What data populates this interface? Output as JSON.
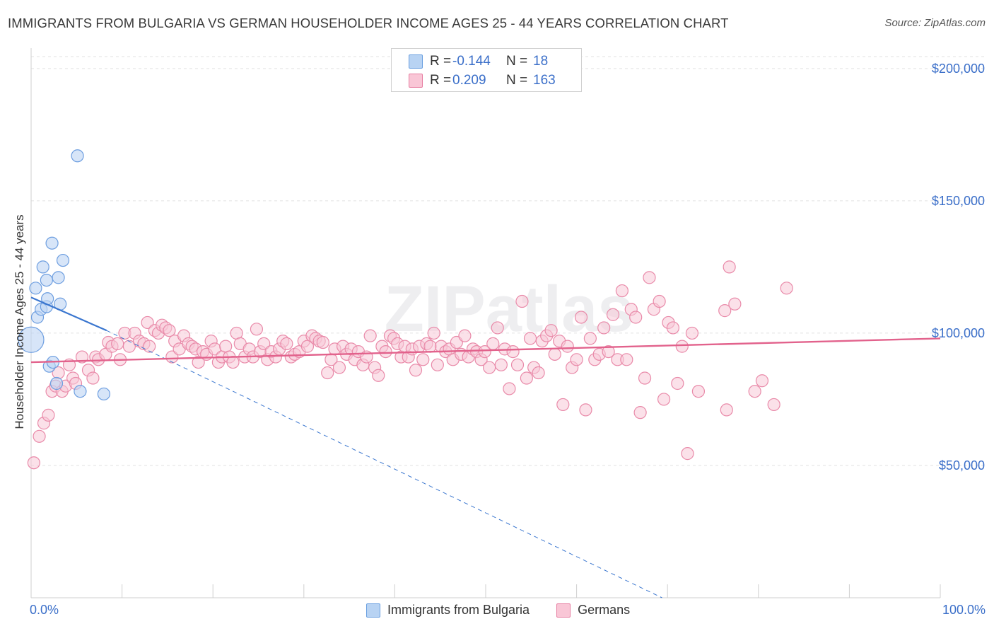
{
  "header": {
    "title": "IMMIGRANTS FROM BULGARIA VS GERMAN HOUSEHOLDER INCOME AGES 25 - 44 YEARS CORRELATION CHART",
    "source": "Source: ZipAtlas.com"
  },
  "watermark": "ZIPatlas",
  "legend": {
    "r_label": "R =",
    "n_label": "N =",
    "rows": [
      {
        "name": "Immigrants from Bulgaria",
        "r": "-0.144",
        "n": "18",
        "fill": "#b8d3f3",
        "stroke": "#6a9fe0"
      },
      {
        "name": "Germans",
        "r": "0.209",
        "n": "163",
        "fill": "#f9c6d6",
        "stroke": "#e77fa2"
      }
    ]
  },
  "colors": {
    "blue_fill": "#bcd4f4",
    "blue_stroke": "#6d9ee0",
    "blue_line": "#3a76cf",
    "pink_fill": "#f8c8d7",
    "pink_stroke": "#e98aa9",
    "pink_line": "#e2628c",
    "axis_text": "#3b6fc9",
    "grid": "#e2e2e2"
  },
  "chart_data": {
    "type": "scatter",
    "title": "IMMIGRANTS FROM BULGARIA VS GERMAN HOUSEHOLDER INCOME AGES 25 - 44 YEARS CORRELATION CHART",
    "xlabel": "",
    "ylabel": "Householder Income Ages 25 - 44 years",
    "xlim": [
      0,
      100
    ],
    "ylim": [
      0,
      200000
    ],
    "x_tick_labels": [
      "0.0%",
      "100.0%"
    ],
    "y_ticks": [
      50000,
      100000,
      150000,
      200000
    ],
    "y_tick_labels": [
      "$50,000",
      "$100,000",
      "$150,000",
      "$200,000"
    ],
    "series": [
      {
        "name": "Immigrants from Bulgaria",
        "color": "blue",
        "trend": {
          "x0": 0,
          "y0": 113500,
          "x1": 8.3,
          "y1": 101000,
          "dash_to_x": 69.4,
          "dash_to_y": 0
        },
        "points": [
          {
            "x": 0.0,
            "y": 97500,
            "big": true
          },
          {
            "x": 0.5,
            "y": 117000
          },
          {
            "x": 0.7,
            "y": 106000
          },
          {
            "x": 1.1,
            "y": 109000
          },
          {
            "x": 1.3,
            "y": 125000
          },
          {
            "x": 1.7,
            "y": 110000
          },
          {
            "x": 1.7,
            "y": 120000
          },
          {
            "x": 1.8,
            "y": 113000
          },
          {
            "x": 2.0,
            "y": 87500
          },
          {
            "x": 2.3,
            "y": 134000
          },
          {
            "x": 2.4,
            "y": 89000
          },
          {
            "x": 2.8,
            "y": 81000
          },
          {
            "x": 3.0,
            "y": 121000
          },
          {
            "x": 3.2,
            "y": 111000
          },
          {
            "x": 3.5,
            "y": 127500
          },
          {
            "x": 5.1,
            "y": 167000
          },
          {
            "x": 5.4,
            "y": 78000
          },
          {
            "x": 8.0,
            "y": 77000
          }
        ]
      },
      {
        "name": "Germans",
        "color": "pink",
        "trend": {
          "x0": 0,
          "y0": 89000,
          "x1": 100,
          "y1": 98000
        },
        "points": [
          {
            "x": 0.3,
            "y": 51000
          },
          {
            "x": 0.9,
            "y": 61000
          },
          {
            "x": 1.4,
            "y": 66000
          },
          {
            "x": 1.9,
            "y": 69000
          },
          {
            "x": 2.3,
            "y": 78000
          },
          {
            "x": 2.7,
            "y": 80000
          },
          {
            "x": 3.0,
            "y": 85000
          },
          {
            "x": 3.4,
            "y": 78000
          },
          {
            "x": 3.8,
            "y": 80000
          },
          {
            "x": 4.2,
            "y": 88000
          },
          {
            "x": 4.6,
            "y": 83000
          },
          {
            "x": 4.9,
            "y": 81000
          },
          {
            "x": 5.6,
            "y": 91000
          },
          {
            "x": 6.3,
            "y": 86000
          },
          {
            "x": 6.8,
            "y": 83000
          },
          {
            "x": 7.1,
            "y": 91000
          },
          {
            "x": 7.4,
            "y": 90000
          },
          {
            "x": 8.2,
            "y": 92000
          },
          {
            "x": 8.5,
            "y": 96500
          },
          {
            "x": 8.9,
            "y": 95000
          },
          {
            "x": 9.5,
            "y": 96000
          },
          {
            "x": 9.8,
            "y": 90000
          },
          {
            "x": 10.3,
            "y": 100000
          },
          {
            "x": 10.8,
            "y": 95000
          },
          {
            "x": 11.4,
            "y": 100000
          },
          {
            "x": 11.9,
            "y": 97000
          },
          {
            "x": 12.4,
            "y": 96000
          },
          {
            "x": 12.8,
            "y": 104000
          },
          {
            "x": 13.0,
            "y": 95000
          },
          {
            "x": 13.6,
            "y": 101000
          },
          {
            "x": 14.0,
            "y": 100000
          },
          {
            "x": 14.4,
            "y": 103000
          },
          {
            "x": 14.8,
            "y": 102000
          },
          {
            "x": 15.2,
            "y": 101000
          },
          {
            "x": 15.5,
            "y": 91000
          },
          {
            "x": 15.8,
            "y": 97000
          },
          {
            "x": 16.3,
            "y": 94000
          },
          {
            "x": 16.8,
            "y": 99000
          },
          {
            "x": 17.3,
            "y": 96000
          },
          {
            "x": 17.7,
            "y": 95000
          },
          {
            "x": 18.1,
            "y": 94000
          },
          {
            "x": 18.4,
            "y": 89000
          },
          {
            "x": 18.9,
            "y": 93000
          },
          {
            "x": 19.3,
            "y": 92000
          },
          {
            "x": 19.8,
            "y": 97000
          },
          {
            "x": 20.2,
            "y": 94000
          },
          {
            "x": 20.6,
            "y": 89000
          },
          {
            "x": 21.0,
            "y": 91000
          },
          {
            "x": 21.4,
            "y": 95000
          },
          {
            "x": 21.8,
            "y": 91000
          },
          {
            "x": 22.2,
            "y": 89000
          },
          {
            "x": 22.6,
            "y": 100000
          },
          {
            "x": 23.0,
            "y": 96000
          },
          {
            "x": 23.5,
            "y": 91000
          },
          {
            "x": 24.0,
            "y": 94000
          },
          {
            "x": 24.4,
            "y": 91000
          },
          {
            "x": 24.8,
            "y": 101500
          },
          {
            "x": 25.2,
            "y": 93000
          },
          {
            "x": 25.6,
            "y": 96000
          },
          {
            "x": 26.0,
            "y": 90000
          },
          {
            "x": 26.4,
            "y": 93000
          },
          {
            "x": 26.9,
            "y": 91000
          },
          {
            "x": 27.3,
            "y": 94000
          },
          {
            "x": 27.7,
            "y": 97000
          },
          {
            "x": 28.1,
            "y": 96000
          },
          {
            "x": 28.6,
            "y": 91000
          },
          {
            "x": 29.0,
            "y": 92000
          },
          {
            "x": 29.5,
            "y": 93000
          },
          {
            "x": 30.0,
            "y": 97000
          },
          {
            "x": 30.4,
            "y": 95000
          },
          {
            "x": 30.9,
            "y": 99000
          },
          {
            "x": 31.3,
            "y": 98000
          },
          {
            "x": 31.7,
            "y": 97000
          },
          {
            "x": 32.1,
            "y": 96500
          },
          {
            "x": 32.6,
            "y": 85000
          },
          {
            "x": 33.0,
            "y": 90000
          },
          {
            "x": 33.4,
            "y": 94000
          },
          {
            "x": 33.9,
            "y": 87000
          },
          {
            "x": 34.3,
            "y": 95000
          },
          {
            "x": 34.7,
            "y": 92000
          },
          {
            "x": 35.2,
            "y": 94000
          },
          {
            "x": 35.6,
            "y": 90000
          },
          {
            "x": 36.0,
            "y": 93000
          },
          {
            "x": 36.5,
            "y": 88000
          },
          {
            "x": 36.9,
            "y": 91000
          },
          {
            "x": 37.3,
            "y": 99000
          },
          {
            "x": 37.8,
            "y": 87000
          },
          {
            "x": 38.2,
            "y": 84000
          },
          {
            "x": 38.6,
            "y": 95000
          },
          {
            "x": 39.0,
            "y": 93000
          },
          {
            "x": 39.5,
            "y": 99000
          },
          {
            "x": 39.9,
            "y": 98000
          },
          {
            "x": 40.3,
            "y": 96000
          },
          {
            "x": 40.7,
            "y": 91000
          },
          {
            "x": 41.1,
            "y": 95000
          },
          {
            "x": 41.5,
            "y": 91000
          },
          {
            "x": 41.9,
            "y": 94000
          },
          {
            "x": 42.3,
            "y": 86000
          },
          {
            "x": 42.7,
            "y": 95000
          },
          {
            "x": 43.1,
            "y": 90000
          },
          {
            "x": 43.5,
            "y": 96000
          },
          {
            "x": 43.9,
            "y": 95000
          },
          {
            "x": 44.3,
            "y": 100000
          },
          {
            "x": 44.7,
            "y": 88000
          },
          {
            "x": 45.1,
            "y": 95000
          },
          {
            "x": 45.6,
            "y": 93000
          },
          {
            "x": 46.0,
            "y": 94000
          },
          {
            "x": 46.4,
            "y": 90000
          },
          {
            "x": 46.8,
            "y": 96500
          },
          {
            "x": 47.3,
            "y": 92000
          },
          {
            "x": 47.7,
            "y": 99000
          },
          {
            "x": 48.1,
            "y": 91000
          },
          {
            "x": 48.6,
            "y": 94000
          },
          {
            "x": 49.0,
            "y": 93000
          },
          {
            "x": 49.5,
            "y": 90000
          },
          {
            "x": 49.9,
            "y": 93000
          },
          {
            "x": 50.4,
            "y": 87000
          },
          {
            "x": 50.8,
            "y": 96000
          },
          {
            "x": 51.3,
            "y": 102000
          },
          {
            "x": 51.7,
            "y": 88000
          },
          {
            "x": 52.1,
            "y": 94000
          },
          {
            "x": 52.6,
            "y": 79000
          },
          {
            "x": 53.0,
            "y": 93000
          },
          {
            "x": 53.5,
            "y": 88000
          },
          {
            "x": 54.0,
            "y": 112000
          },
          {
            "x": 54.5,
            "y": 83000
          },
          {
            "x": 54.9,
            "y": 98000
          },
          {
            "x": 55.3,
            "y": 87000
          },
          {
            "x": 55.8,
            "y": 85000
          },
          {
            "x": 56.2,
            "y": 97000
          },
          {
            "x": 56.7,
            "y": 99000
          },
          {
            "x": 57.2,
            "y": 101000
          },
          {
            "x": 57.6,
            "y": 92000
          },
          {
            "x": 58.1,
            "y": 97000
          },
          {
            "x": 58.5,
            "y": 73000
          },
          {
            "x": 59.0,
            "y": 95000
          },
          {
            "x": 59.5,
            "y": 87000
          },
          {
            "x": 60.0,
            "y": 90000
          },
          {
            "x": 60.5,
            "y": 106000
          },
          {
            "x": 61.0,
            "y": 71000
          },
          {
            "x": 61.5,
            "y": 98000
          },
          {
            "x": 62.0,
            "y": 90000
          },
          {
            "x": 62.5,
            "y": 92000
          },
          {
            "x": 63.0,
            "y": 102000
          },
          {
            "x": 63.5,
            "y": 93000
          },
          {
            "x": 64.0,
            "y": 107000
          },
          {
            "x": 64.5,
            "y": 90000
          },
          {
            "x": 65.0,
            "y": 116000
          },
          {
            "x": 65.5,
            "y": 90000
          },
          {
            "x": 66.0,
            "y": 109000
          },
          {
            "x": 66.5,
            "y": 106000
          },
          {
            "x": 67.0,
            "y": 70000
          },
          {
            "x": 67.5,
            "y": 83000
          },
          {
            "x": 68.0,
            "y": 121000
          },
          {
            "x": 68.5,
            "y": 109000
          },
          {
            "x": 69.1,
            "y": 112000
          },
          {
            "x": 69.6,
            "y": 75000
          },
          {
            "x": 70.1,
            "y": 104000
          },
          {
            "x": 70.6,
            "y": 102000
          },
          {
            "x": 71.1,
            "y": 81000
          },
          {
            "x": 71.6,
            "y": 95000
          },
          {
            "x": 72.2,
            "y": 54500
          },
          {
            "x": 72.7,
            "y": 100000
          },
          {
            "x": 73.4,
            "y": 78000
          },
          {
            "x": 76.3,
            "y": 108500
          },
          {
            "x": 76.5,
            "y": 71000
          },
          {
            "x": 76.8,
            "y": 125000
          },
          {
            "x": 77.4,
            "y": 111000
          },
          {
            "x": 79.6,
            "y": 78000
          },
          {
            "x": 80.4,
            "y": 82000
          },
          {
            "x": 81.7,
            "y": 73000
          },
          {
            "x": 83.1,
            "y": 117000
          }
        ]
      }
    ]
  }
}
